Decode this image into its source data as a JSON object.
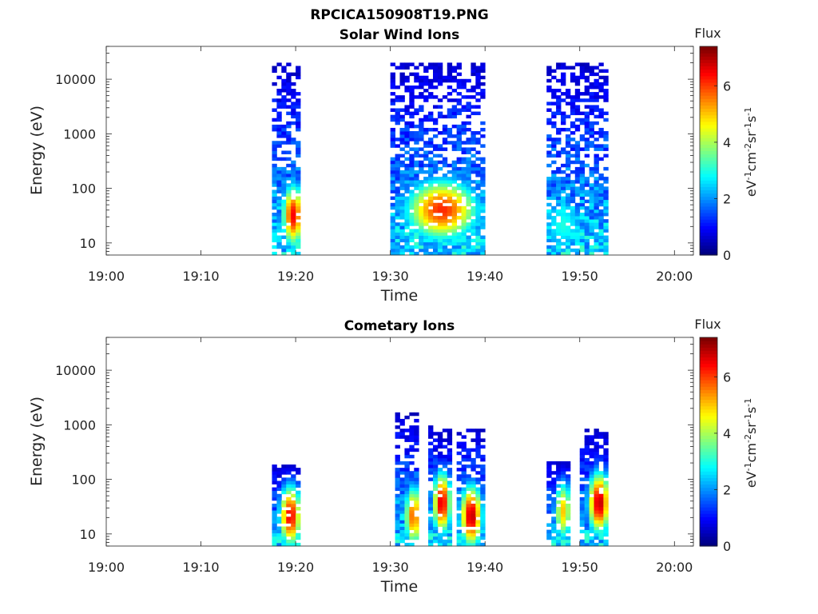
{
  "figure_title": "RPCICA150908T19.PNG",
  "chart_data": [
    {
      "type": "heatmap",
      "title": "Solar Wind Ions",
      "xlabel": "Time",
      "ylabel": "Energy (eV)",
      "xlim": [
        "19:00",
        "20:02"
      ],
      "ylim": [
        6,
        40000
      ],
      "yscale": "log",
      "xticks": [
        "19:00",
        "19:10",
        "19:20",
        "19:30",
        "19:40",
        "19:50",
        "20:00"
      ],
      "yticks": [
        "10",
        "100",
        "1000",
        "10000"
      ],
      "colorbar": {
        "label_title": "Flux",
        "label_unit": "eV^-1 cm^-2 sr^-1 s^-1",
        "range": [
          0,
          7.4
        ],
        "ticks": [
          "0",
          "2",
          "4",
          "6"
        ],
        "colormap": "jet"
      },
      "bursts": [
        {
          "start": "19:17.5",
          "end": "19:20.5",
          "peak_time": "19:19.5",
          "peak_energy_eV": 30,
          "peak_flux": 6.5,
          "max_energy_eV": 18000,
          "min_flux_high": 0.5
        },
        {
          "start": "19:30.0",
          "end": "19:40.0",
          "peak_time": "19:35.2",
          "peak_energy_eV": 38,
          "peak_flux": 6.2,
          "max_energy_eV": 20000,
          "min_flux_high": 0.8
        },
        {
          "start": "19:46.5",
          "end": "19:53.0",
          "peak_time": "19:48.0",
          "peak_energy_eV": 20,
          "peak_flux": 3.0,
          "max_energy_eV": 20000,
          "min_flux_high": 0.7
        }
      ]
    },
    {
      "type": "heatmap",
      "title": "Cometary Ions",
      "xlabel": "Time",
      "ylabel": "Energy (eV)",
      "xlim": [
        "19:00",
        "20:02"
      ],
      "ylim": [
        6,
        40000
      ],
      "yscale": "log",
      "xticks": [
        "19:00",
        "19:10",
        "19:20",
        "19:30",
        "19:40",
        "19:50",
        "20:00"
      ],
      "yticks": [
        "10",
        "100",
        "1000",
        "10000"
      ],
      "colorbar": {
        "label_title": "Flux",
        "label_unit": "eV^-1 cm^-2 sr^-1 s^-1",
        "range": [
          0,
          7.4
        ],
        "ticks": [
          "0",
          "2",
          "4",
          "6"
        ],
        "colormap": "jet"
      },
      "bursts": [
        {
          "start": "19:17.5",
          "end": "19:20.5",
          "peak_time": "19:19.2",
          "peak_energy_eV": 20,
          "peak_flux": 6.6,
          "max_energy_eV": 180
        },
        {
          "start": "19:30.5",
          "end": "19:33.0",
          "peak_time": "19:32.2",
          "peak_energy_eV": 20,
          "peak_flux": 5.8,
          "max_energy_eV": 1500
        },
        {
          "start": "19:34.0",
          "end": "19:36.5",
          "peak_time": "19:35.2",
          "peak_energy_eV": 35,
          "peak_flux": 6.8,
          "max_energy_eV": 900
        },
        {
          "start": "19:37.0",
          "end": "19:40.0",
          "peak_time": "19:38.3",
          "peak_energy_eV": 20,
          "peak_flux": 7.0,
          "max_energy_eV": 800
        },
        {
          "start": "19:46.5",
          "end": "19:49.0",
          "peak_time": "19:48.0",
          "peak_energy_eV": 25,
          "peak_flux": 5.0,
          "max_energy_eV": 200
        },
        {
          "start": "19:50.0",
          "end": "19:53.0",
          "peak_time": "19:51.8",
          "peak_energy_eV": 35,
          "peak_flux": 7.0,
          "max_energy_eV": 800
        }
      ]
    }
  ]
}
